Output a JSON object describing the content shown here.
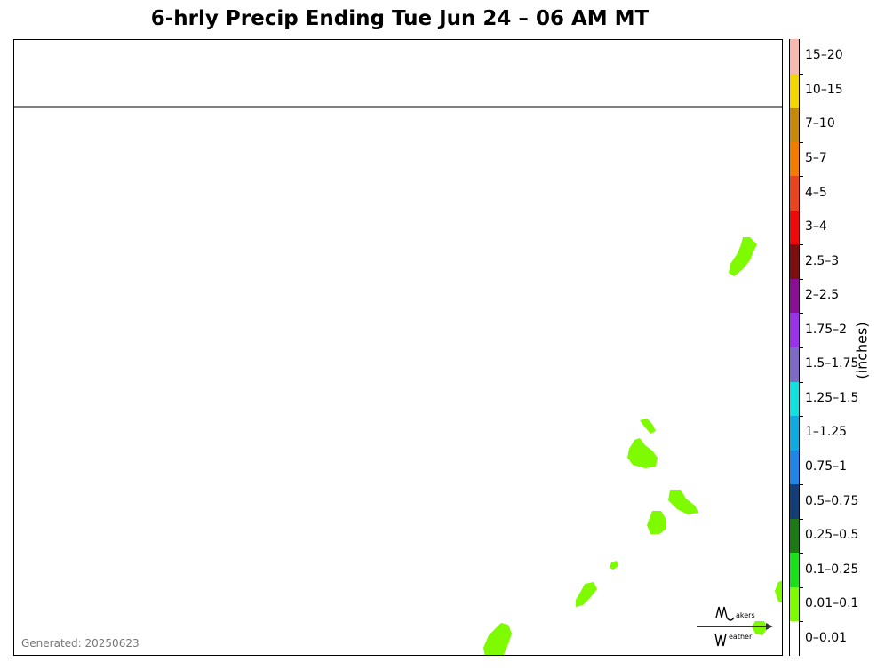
{
  "title": "6-hrly Precip Ending Tue Jun 24 – 06 AM MT",
  "generated": "Generated: 20250623",
  "units": "(inches)",
  "logo_text": {
    "top": "akers",
    "bottom": "eather"
  },
  "legend": [
    {
      "label": "15–20",
      "color": "#f7b8b0"
    },
    {
      "label": "10–15",
      "color": "#f2d600"
    },
    {
      "label": "7–10",
      "color": "#c58a0a"
    },
    {
      "label": "5–7",
      "color": "#f07d00"
    },
    {
      "label": "4–5",
      "color": "#e8441e"
    },
    {
      "label": "3–4",
      "color": "#ee0a0a"
    },
    {
      "label": "2.5–3",
      "color": "#7e0f10"
    },
    {
      "label": "2–2.5",
      "color": "#8b0f94"
    },
    {
      "label": "1.75–2",
      "color": "#9a32e8"
    },
    {
      "label": "1.5–1.75",
      "color": "#7e69c4"
    },
    {
      "label": "1.25–1.5",
      "color": "#11e0e0"
    },
    {
      "label": "1–1.25",
      "color": "#12a8e0"
    },
    {
      "label": "0.75–1",
      "color": "#1e86e6"
    },
    {
      "label": "0.5–0.75",
      "color": "#143e78"
    },
    {
      "label": "0.25–0.5",
      "color": "#1b7a13"
    },
    {
      "label": "0.1–0.25",
      "color": "#19e019"
    },
    {
      "label": "0.01–0.1",
      "color": "#7efb00"
    },
    {
      "label": "0–0.01",
      "color": "#ffffff"
    }
  ],
  "precip_color": "#7efb00"
}
